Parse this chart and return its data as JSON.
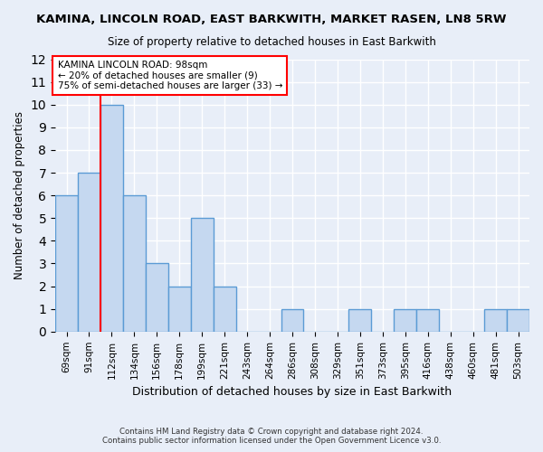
{
  "title": "KAMINA, LINCOLN ROAD, EAST BARKWITH, MARKET RASEN, LN8 5RW",
  "subtitle": "Size of property relative to detached houses in East Barkwith",
  "xlabel": "Distribution of detached houses by size in East Barkwith",
  "ylabel": "Number of detached properties",
  "categories": [
    "69sqm",
    "91sqm",
    "112sqm",
    "134sqm",
    "156sqm",
    "178sqm",
    "199sqm",
    "221sqm",
    "243sqm",
    "264sqm",
    "286sqm",
    "308sqm",
    "329sqm",
    "351sqm",
    "373sqm",
    "395sqm",
    "416sqm",
    "438sqm",
    "460sqm",
    "481sqm",
    "503sqm"
  ],
  "values": [
    6,
    7,
    10,
    6,
    3,
    2,
    5,
    2,
    0,
    0,
    1,
    0,
    0,
    1,
    0,
    1,
    1,
    0,
    0,
    1,
    1
  ],
  "bar_color": "#c5d8f0",
  "bar_edge_color": "#5b9bd5",
  "bar_edge_width": 1.0,
  "annotation_text": "KAMINA LINCOLN ROAD: 98sqm\n← 20% of detached houses are smaller (9)\n75% of semi-detached houses are larger (33) →",
  "annotation_box_color": "white",
  "annotation_box_edge_color": "red",
  "vline_x": 1.5,
  "vline_color": "red",
  "ylim": [
    0,
    12
  ],
  "yticks": [
    0,
    1,
    2,
    3,
    4,
    5,
    6,
    7,
    8,
    9,
    10,
    11,
    12
  ],
  "background_color": "#e8eef8",
  "grid_color": "white",
  "footer_line1": "Contains HM Land Registry data © Crown copyright and database right 2024.",
  "footer_line2": "Contains public sector information licensed under the Open Government Licence v3.0."
}
